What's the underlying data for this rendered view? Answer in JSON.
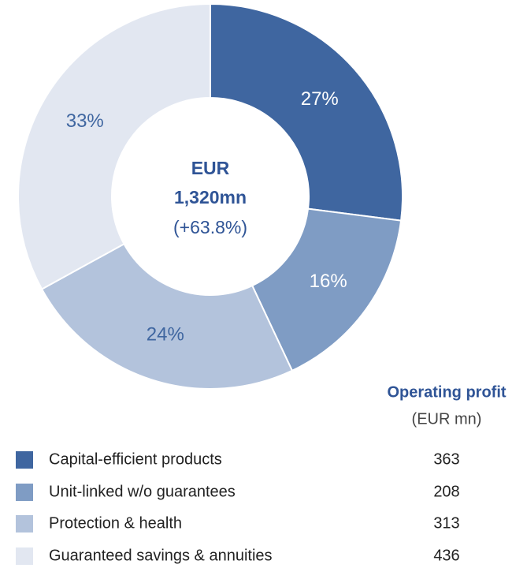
{
  "chart_data": {
    "type": "donut",
    "categories": [
      "Capital-efficient products",
      "Unit-linked w/o guarantees",
      "Protection & health",
      "Guaranteed savings & annuities"
    ],
    "values": [
      27,
      16,
      24,
      33
    ],
    "value_labels": [
      "27%",
      "16%",
      "24%",
      "33%"
    ],
    "colors": [
      "#3f66a0",
      "#7f9cc4",
      "#b3c3dc",
      "#e2e7f1"
    ],
    "label_colors": [
      "#ffffff",
      "#ffffff",
      "#3f66a0",
      "#3f66a0"
    ],
    "center_label": [
      "EUR",
      "1,320mn",
      "(+63.8%)"
    ],
    "table": {
      "title": "Operating profit",
      "subtitle": "(EUR mn)",
      "values": [
        363,
        208,
        313,
        436
      ]
    }
  }
}
